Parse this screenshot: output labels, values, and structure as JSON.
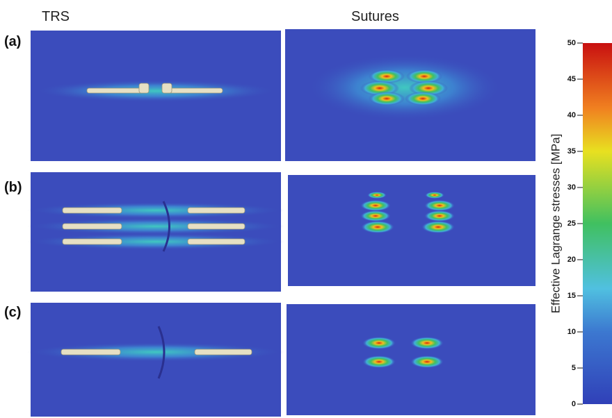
{
  "column_titles": [
    "TRS",
    "Sutures"
  ],
  "row_labels": [
    "(a)",
    "(b)",
    "(c)"
  ],
  "colorbar": {
    "label": "Effective  Lagrange  stresses [MPa]",
    "lim": [
      0,
      50
    ],
    "ticks": [
      0,
      5,
      10,
      15,
      20,
      25,
      30,
      35,
      40,
      45,
      50
    ]
  }
}
